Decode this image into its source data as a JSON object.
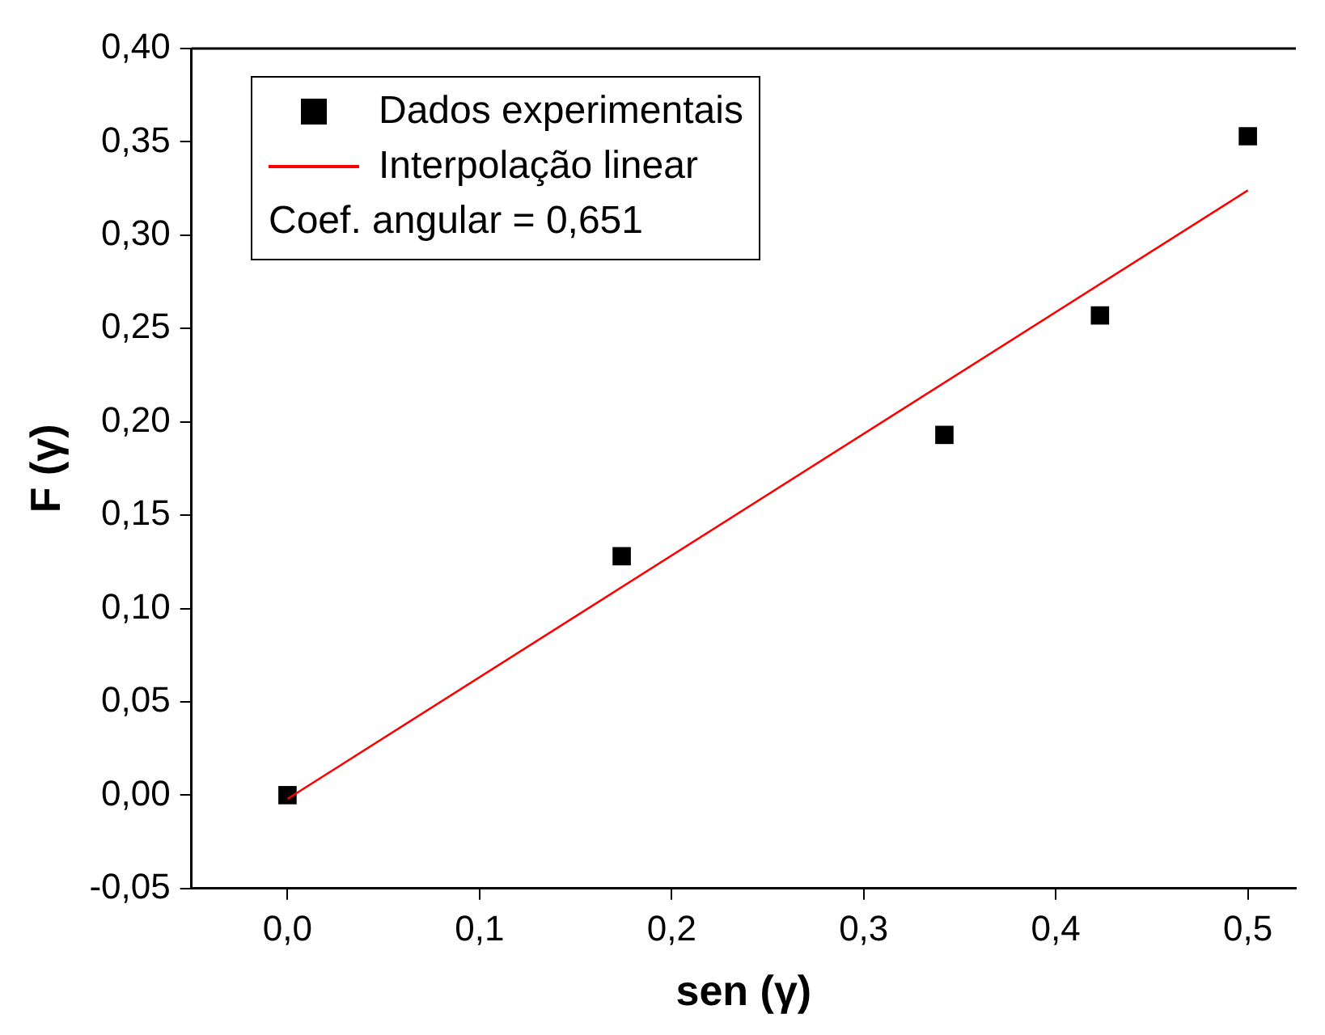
{
  "chart_data": {
    "type": "scatter",
    "xlabel": "sen (γ)",
    "ylabel": "F (γ)",
    "xlim": [
      -0.05,
      0.525
    ],
    "ylim": [
      -0.05,
      0.4
    ],
    "xticks": [
      {
        "value": 0,
        "label": "0,0"
      },
      {
        "value": 0.1,
        "label": "0,1"
      },
      {
        "value": 0.2,
        "label": "0,2"
      },
      {
        "value": 0.3,
        "label": "0,3"
      },
      {
        "value": 0.4,
        "label": "0,4"
      },
      {
        "value": 0.5,
        "label": "0,5"
      }
    ],
    "yticks": [
      {
        "value": -0.05,
        "label": "-0,05"
      },
      {
        "value": 0,
        "label": "0,00"
      },
      {
        "value": 0.05,
        "label": "0,05"
      },
      {
        "value": 0.1,
        "label": "0,10"
      },
      {
        "value": 0.15,
        "label": "0,15"
      },
      {
        "value": 0.2,
        "label": "0,20"
      },
      {
        "value": 0.25,
        "label": "0,25"
      },
      {
        "value": 0.3,
        "label": "0,30"
      },
      {
        "value": 0.35,
        "label": "0,35"
      },
      {
        "value": 0.4,
        "label": "0,40"
      }
    ],
    "grid": false,
    "legend": "top left",
    "annotations": [
      "Coef. angular = 0,651"
    ],
    "series": [
      {
        "name": "Dados experimentais",
        "marker": "square",
        "color": "#000000",
        "x": [
          0,
          0.174,
          0.342,
          0.423,
          0.5
        ],
        "values": [
          0,
          0.128,
          0.193,
          0.257,
          0.353
        ]
      },
      {
        "name": "Interpolação linear",
        "type": "line",
        "marker": "none",
        "color": "#ff0000",
        "x": [
          0,
          0.5
        ],
        "values": [
          -0.002,
          0.324
        ]
      }
    ]
  }
}
